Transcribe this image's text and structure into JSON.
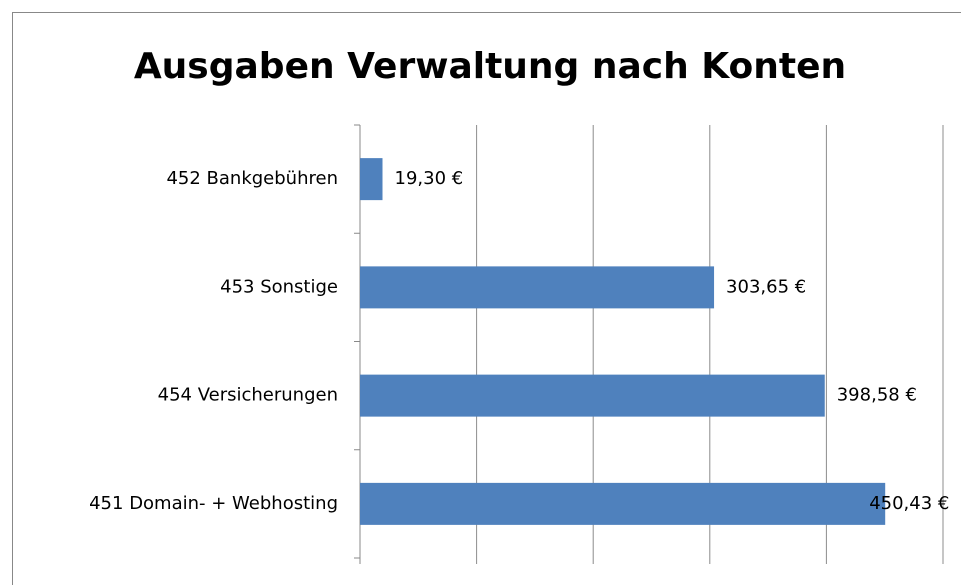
{
  "chart_data": {
    "type": "barh",
    "title": "Ausgaben Verwaltung nach Konten",
    "categories": [
      "452 Bankgebühren",
      "453 Sonstige",
      "454 Versicherungen",
      "451 Domain- + Webhosting"
    ],
    "values": [
      19.3,
      303.65,
      398.58,
      450.43
    ],
    "value_labels": [
      "19,30 €",
      "303,65 €",
      "398,58 €",
      "450,43 €"
    ],
    "color": "#4f81bd",
    "xlim": [
      0,
      500
    ],
    "xticks": [
      0,
      100,
      200,
      300,
      400,
      500
    ],
    "grid": true
  }
}
